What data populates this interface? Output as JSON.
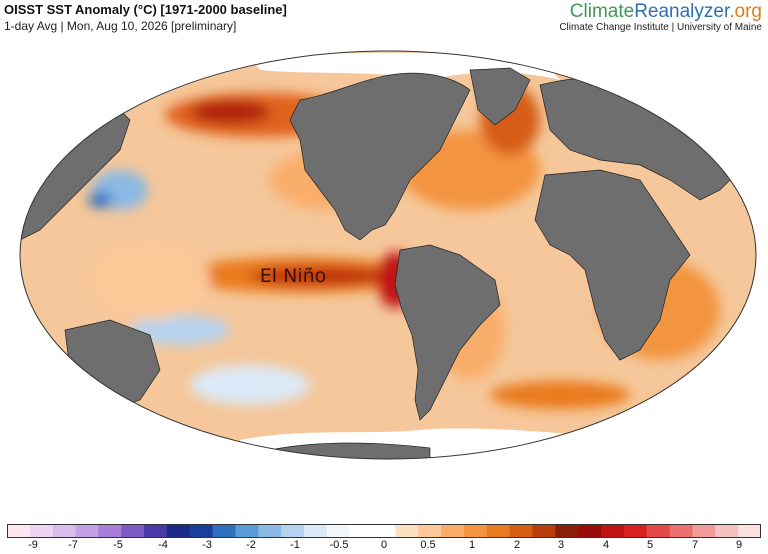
{
  "header": {
    "title": "OISST SST Anomaly (°C) [1971-2000 baseline]",
    "subtitle": "1-day Avg | Mon, Aug 10, 2026 [preliminary]"
  },
  "brand": {
    "name_part1": "Climate",
    "name_part2": "Reanalyzer",
    "name_part3": ".org",
    "affiliation": "Climate Change Institute | University of Maine"
  },
  "map": {
    "projection": "robinson",
    "annotation": "El Niño",
    "ocean_base_color": "#f5c79a",
    "land_color": "#6e6e6e",
    "sea_ice_color": "#ffffff"
  },
  "colorbar": {
    "colors": [
      "#fde8f2",
      "#ecd6f0",
      "#d8bcec",
      "#c4a0e4",
      "#a87ed8",
      "#7c5bc6",
      "#4a3aa8",
      "#1e2a8a",
      "#1a3f9a",
      "#2f6fc0",
      "#5a9ad6",
      "#8ab9e4",
      "#b5d3ef",
      "#dbe9f7",
      "#f3f7fc",
      "#ffffff",
      "#ffffff",
      "#fde0c4",
      "#fcc898",
      "#f9ad6a",
      "#f39440",
      "#ea7a1e",
      "#d65d12",
      "#b8400d",
      "#8a1e07",
      "#9c0b0b",
      "#c01212",
      "#d92020",
      "#e44848",
      "#ec7070",
      "#f19a98",
      "#f6c2c0",
      "#fbe2e0"
    ],
    "tick_labels": [
      "-9",
      "-7",
      "-5",
      "-4",
      "-3",
      "-2",
      "-1",
      "-0.5",
      "0",
      "0.5",
      "1",
      "2",
      "3",
      "4",
      "5",
      "7",
      "9"
    ]
  }
}
